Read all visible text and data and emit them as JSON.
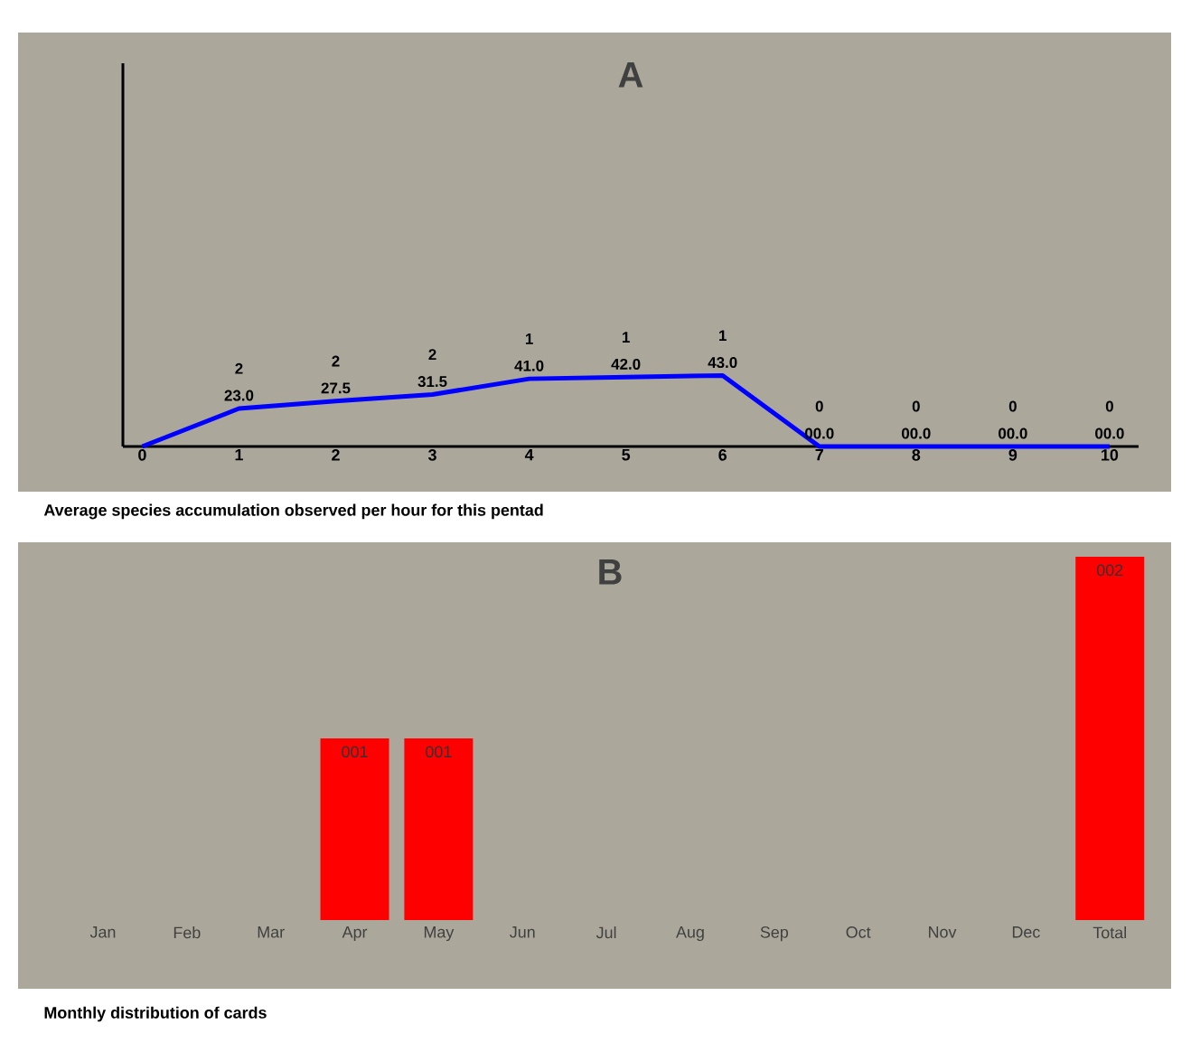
{
  "chart_data": [
    {
      "type": "line",
      "title": "A",
      "x": [
        0,
        1,
        2,
        3,
        4,
        5,
        6,
        7,
        8,
        9,
        10
      ],
      "values": [
        0,
        23.0,
        27.5,
        31.5,
        41.0,
        42.0,
        43.0,
        0,
        0,
        0,
        0
      ],
      "value_labels": [
        null,
        "23.0",
        "27.5",
        "31.5",
        "41.0",
        "42.0",
        "43.0",
        "00.0",
        "00.0",
        "00.0",
        "00.0"
      ],
      "color": "#0000ff",
      "marker": "none",
      "xlim": [
        -0.2,
        10.3
      ],
      "xticks": [
        0,
        1,
        2,
        3,
        4,
        5,
        6,
        7,
        8,
        9,
        10
      ],
      "tick_labels": "x",
      "annotations": [
        {
          "text": "2",
          "x": 1,
          "y": 23.0
        },
        {
          "text": "2",
          "x": 2,
          "y": 27.5
        },
        {
          "text": "2",
          "x": 3,
          "y": 31.5
        },
        {
          "text": "1",
          "x": 4,
          "y": 41.0
        },
        {
          "text": "1",
          "x": 5,
          "y": 42.0
        },
        {
          "text": "1",
          "x": 6,
          "y": 43.0
        },
        {
          "text": "0",
          "x": 7,
          "y": 0
        },
        {
          "text": "0",
          "x": 8,
          "y": 0
        },
        {
          "text": "0",
          "x": 9,
          "y": 0
        },
        {
          "text": "0",
          "x": 10,
          "y": 0
        },
        "Average species accumulation observed per hour for this pentad"
      ]
    },
    {
      "type": "bar",
      "title": "B",
      "categories": [
        "Jan",
        "Feb",
        "Mar",
        "Apr",
        "May",
        "Jun",
        "Jul",
        "Aug",
        "Sep",
        "Oct",
        "Nov",
        "Dec",
        "Total"
      ],
      "values": [
        0,
        0,
        0,
        1,
        1,
        0,
        0,
        0,
        0,
        0,
        0,
        0,
        2
      ],
      "value_labels": [
        null,
        null,
        null,
        "001",
        "001",
        null,
        null,
        null,
        null,
        null,
        null,
        null,
        "002"
      ],
      "color": "#ff0000",
      "tick_labels": "x",
      "annotations": [
        "Monthly distribution of cards"
      ]
    }
  ]
}
